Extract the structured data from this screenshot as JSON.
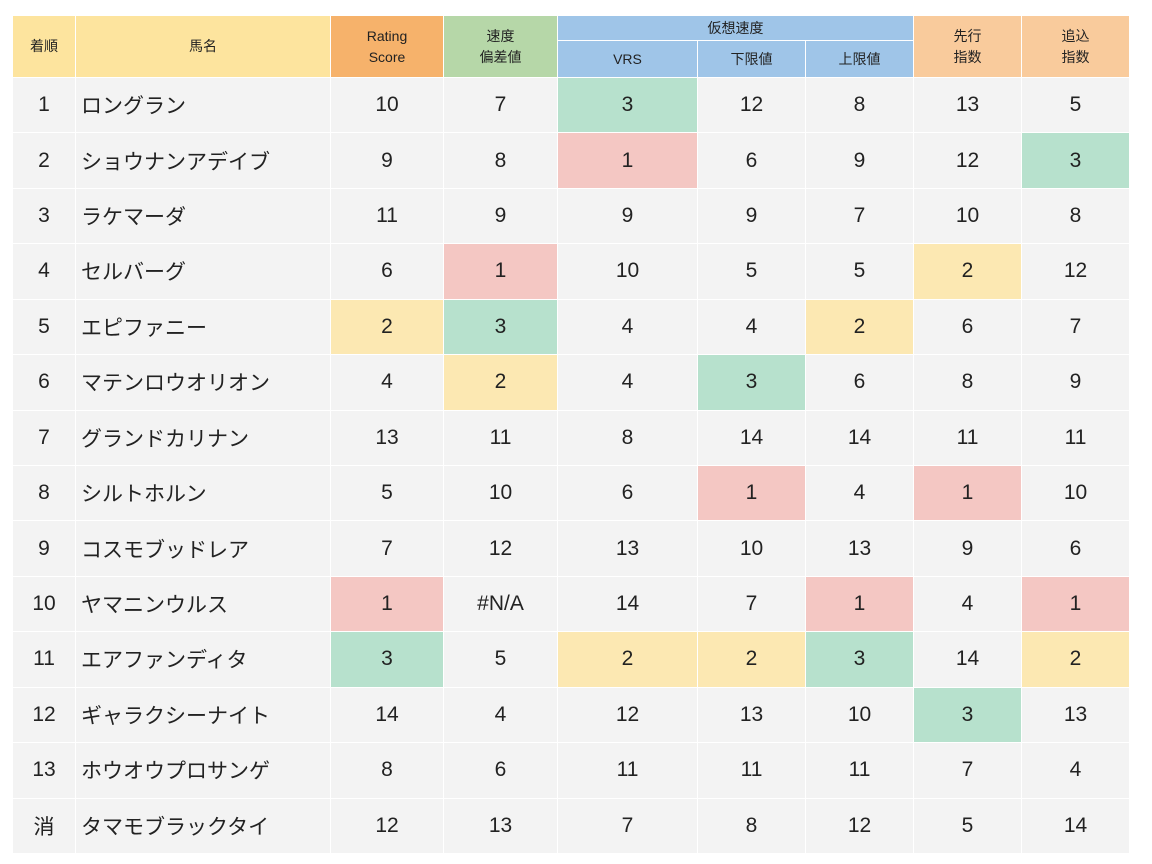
{
  "table": {
    "group": {
      "label": "仮想速度",
      "from": 4,
      "to": 6,
      "color": "#9fc5e8"
    },
    "columns": [
      {
        "lines": [
          "着順"
        ],
        "color": "#fde49e"
      },
      {
        "lines": [
          "馬名"
        ],
        "color": "#fde49e"
      },
      {
        "lines": [
          "Rating",
          "Score"
        ],
        "color": "#f6b26b"
      },
      {
        "lines": [
          "速度",
          "偏差値"
        ],
        "color": "#b6d7a8"
      },
      {
        "lines": [
          "VRS"
        ],
        "color": "#9fc5e8"
      },
      {
        "lines": [
          "下限値"
        ],
        "color": "#9fc5e8"
      },
      {
        "lines": [
          "上限値"
        ],
        "color": "#9fc5e8"
      },
      {
        "lines": [
          "先行",
          "指数"
        ],
        "color": "#f9cb9c"
      },
      {
        "lines": [
          "追込",
          "指数"
        ],
        "color": "#f9cb9c"
      }
    ],
    "rows": [
      [
        1,
        "ロングラン",
        10,
        7,
        3,
        12,
        8,
        13,
        5
      ],
      [
        2,
        "ショウナンアデイブ",
        9,
        8,
        1,
        6,
        9,
        12,
        3
      ],
      [
        3,
        "ラケマーダ",
        11,
        9,
        9,
        9,
        7,
        10,
        8
      ],
      [
        4,
        "セルバーグ",
        6,
        1,
        10,
        5,
        5,
        2,
        12
      ],
      [
        5,
        "エピファニー",
        2,
        3,
        4,
        4,
        2,
        6,
        7
      ],
      [
        6,
        "マテンロウオリオン",
        4,
        2,
        4,
        3,
        6,
        8,
        9
      ],
      [
        7,
        "グランドカリナン",
        13,
        11,
        8,
        14,
        14,
        11,
        11
      ],
      [
        8,
        "シルトホルン",
        5,
        10,
        6,
        1,
        4,
        1,
        10
      ],
      [
        9,
        "コスモブッドレア",
        7,
        12,
        13,
        10,
        13,
        9,
        6
      ],
      [
        10,
        "ヤマニンウルス",
        1,
        "#N/A",
        14,
        7,
        1,
        4,
        1
      ],
      [
        11,
        "エアファンディタ",
        3,
        5,
        2,
        2,
        3,
        14,
        2
      ],
      [
        12,
        "ギャラクシーナイト",
        14,
        4,
        12,
        13,
        10,
        3,
        13
      ],
      [
        13,
        "ホウオウプロサンゲ",
        8,
        6,
        11,
        11,
        11,
        7,
        4
      ],
      [
        "消",
        "タマモブラックタイ",
        12,
        13,
        7,
        8,
        12,
        5,
        14
      ]
    ],
    "highlight_colors": {
      "green": "#b7e1cd",
      "red": "#f4c7c3",
      "yellow": "#fce8b2"
    },
    "highlights": [
      {
        "row": 0,
        "col": 4,
        "color": "green"
      },
      {
        "row": 1,
        "col": 4,
        "color": "red"
      },
      {
        "row": 1,
        "col": 8,
        "color": "green"
      },
      {
        "row": 3,
        "col": 3,
        "color": "red"
      },
      {
        "row": 3,
        "col": 7,
        "color": "yellow"
      },
      {
        "row": 4,
        "col": 2,
        "color": "yellow"
      },
      {
        "row": 4,
        "col": 3,
        "color": "green"
      },
      {
        "row": 4,
        "col": 6,
        "color": "yellow"
      },
      {
        "row": 5,
        "col": 3,
        "color": "yellow"
      },
      {
        "row": 5,
        "col": 5,
        "color": "green"
      },
      {
        "row": 7,
        "col": 5,
        "color": "red"
      },
      {
        "row": 7,
        "col": 7,
        "color": "red"
      },
      {
        "row": 9,
        "col": 2,
        "color": "red"
      },
      {
        "row": 9,
        "col": 6,
        "color": "red"
      },
      {
        "row": 9,
        "col": 8,
        "color": "red"
      },
      {
        "row": 10,
        "col": 2,
        "color": "green"
      },
      {
        "row": 10,
        "col": 4,
        "color": "yellow"
      },
      {
        "row": 10,
        "col": 5,
        "color": "yellow"
      },
      {
        "row": 10,
        "col": 6,
        "color": "green"
      },
      {
        "row": 10,
        "col": 8,
        "color": "yellow"
      },
      {
        "row": 11,
        "col": 7,
        "color": "green"
      }
    ]
  }
}
